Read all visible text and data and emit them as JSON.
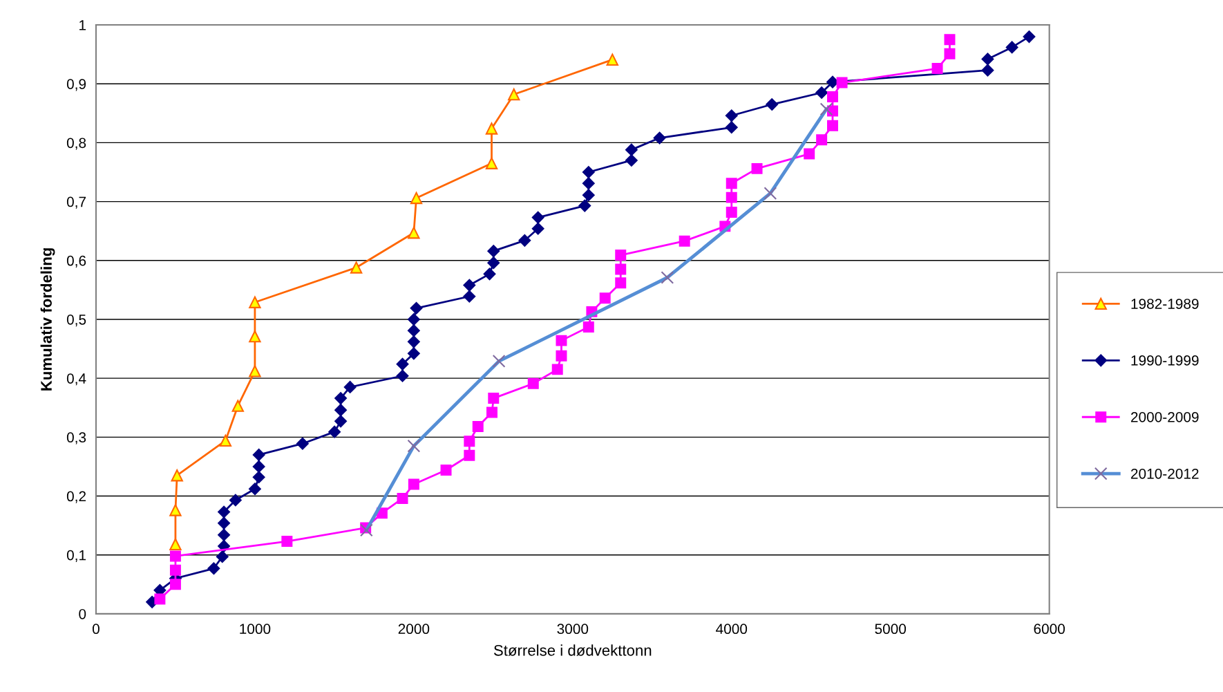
{
  "chart_data": {
    "type": "line",
    "xlabel": "Størrelse i dødvekttonn",
    "ylabel": "Kumulativ fordeling",
    "xlim": [
      0,
      6000
    ],
    "xticks": [
      0,
      1000,
      2000,
      3000,
      4000,
      5000,
      6000
    ],
    "ylim": [
      0,
      1
    ],
    "yticks": [
      0,
      {
        "value": 0.1,
        "label": "0,1"
      },
      {
        "value": 0.2,
        "label": "0,2"
      },
      {
        "value": 0.3,
        "label": "0,3"
      },
      {
        "value": 0.4,
        "label": "0,4"
      },
      {
        "value": 0.5,
        "label": "0,5"
      },
      {
        "value": 0.6,
        "label": "0,6"
      },
      {
        "value": 0.7,
        "label": "0,7"
      },
      {
        "value": 0.8,
        "label": "0,8"
      },
      {
        "value": 0.9,
        "label": "0,9"
      },
      1
    ],
    "grid": "y",
    "legend": "right",
    "line_style": "solid",
    "series": [
      {
        "name": "1982-1989",
        "color": "#ff6600",
        "marker": "triangle",
        "x": [
          500,
          500,
          510,
          815,
          893,
          1000,
          1000,
          1000,
          1638,
          2000,
          2016,
          2490,
          2490,
          2630,
          3250
        ],
        "values": [
          0.118,
          0.176,
          0.235,
          0.294,
          0.353,
          0.412,
          0.471,
          0.529,
          0.588,
          0.647,
          0.706,
          0.765,
          0.824,
          0.882,
          0.941
        ]
      },
      {
        "name": "1990-1999",
        "color": "#000080",
        "marker": "diamond",
        "x": [
          353,
          402,
          500,
          741,
          795,
          805,
          805,
          805,
          805,
          878,
          1000,
          1025,
          1025,
          1025,
          1300,
          1501,
          1540,
          1540,
          1540,
          1599,
          1929,
          1929,
          2000,
          2000,
          2000,
          2000,
          2016,
          2350,
          2350,
          2477,
          2502,
          2502,
          2698,
          2782,
          2782,
          3076,
          3100,
          3100,
          3100,
          3370,
          3370,
          3547,
          4000,
          4000,
          4254,
          4567,
          4636,
          5612,
          5612,
          5765,
          5873
        ],
        "values": [
          0.02,
          0.04,
          0.06,
          0.077,
          0.097,
          0.115,
          0.134,
          0.154,
          0.173,
          0.193,
          0.212,
          0.232,
          0.25,
          0.27,
          0.289,
          0.309,
          0.327,
          0.346,
          0.366,
          0.385,
          0.404,
          0.424,
          0.442,
          0.462,
          0.481,
          0.5,
          0.519,
          0.539,
          0.558,
          0.577,
          0.596,
          0.616,
          0.634,
          0.654,
          0.673,
          0.693,
          0.711,
          0.731,
          0.75,
          0.77,
          0.788,
          0.808,
          0.826,
          0.846,
          0.865,
          0.885,
          0.903,
          0.923,
          0.942,
          0.962,
          0.98
        ]
      },
      {
        "name": "2000-2009",
        "color": "#ff00ff",
        "marker": "square",
        "x": [
          402,
          500,
          500,
          500,
          1202,
          1697,
          1800,
          1929,
          2000,
          2203,
          2350,
          2350,
          2404,
          2492,
          2502,
          2752,
          2904,
          2929,
          2929,
          3100,
          3120,
          3204,
          3302,
          3302,
          3302,
          3704,
          3959,
          4000,
          4000,
          4000,
          4160,
          4489,
          4567,
          4636,
          4636,
          4636,
          4695,
          5295,
          5373,
          5373
        ],
        "values": [
          0.025,
          0.05,
          0.074,
          0.098,
          0.123,
          0.146,
          0.171,
          0.196,
          0.22,
          0.244,
          0.269,
          0.293,
          0.318,
          0.342,
          0.366,
          0.391,
          0.415,
          0.438,
          0.464,
          0.487,
          0.513,
          0.536,
          0.562,
          0.585,
          0.609,
          0.633,
          0.658,
          0.682,
          0.707,
          0.731,
          0.756,
          0.781,
          0.805,
          0.829,
          0.854,
          0.878,
          0.902,
          0.926,
          0.951,
          0.975
        ]
      },
      {
        "name": "2010-2012",
        "color": "#558ed5",
        "marker": "cross",
        "x": [
          1702,
          2000,
          2536,
          3596,
          4244,
          4597
        ],
        "values": [
          0.142,
          0.285,
          0.429,
          0.571,
          0.714,
          0.857
        ]
      }
    ]
  }
}
